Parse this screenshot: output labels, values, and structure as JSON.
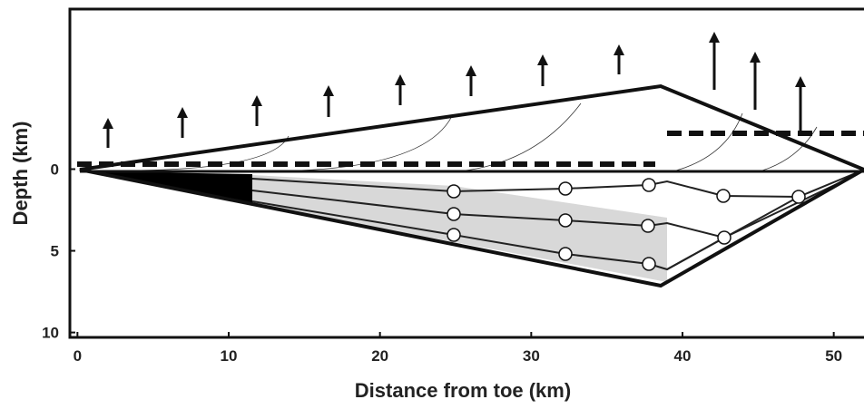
{
  "chart_data": {
    "type": "diagram",
    "xlabel": "Distance from toe (km)",
    "ylabel": "Depth (km)",
    "xlim": [
      -0.5,
      52
    ],
    "ylim": [
      10.3,
      -9.8
    ],
    "xticks": [
      0,
      10,
      20,
      30,
      40,
      50
    ],
    "yticks": [
      0,
      5,
      10
    ]
  }
}
